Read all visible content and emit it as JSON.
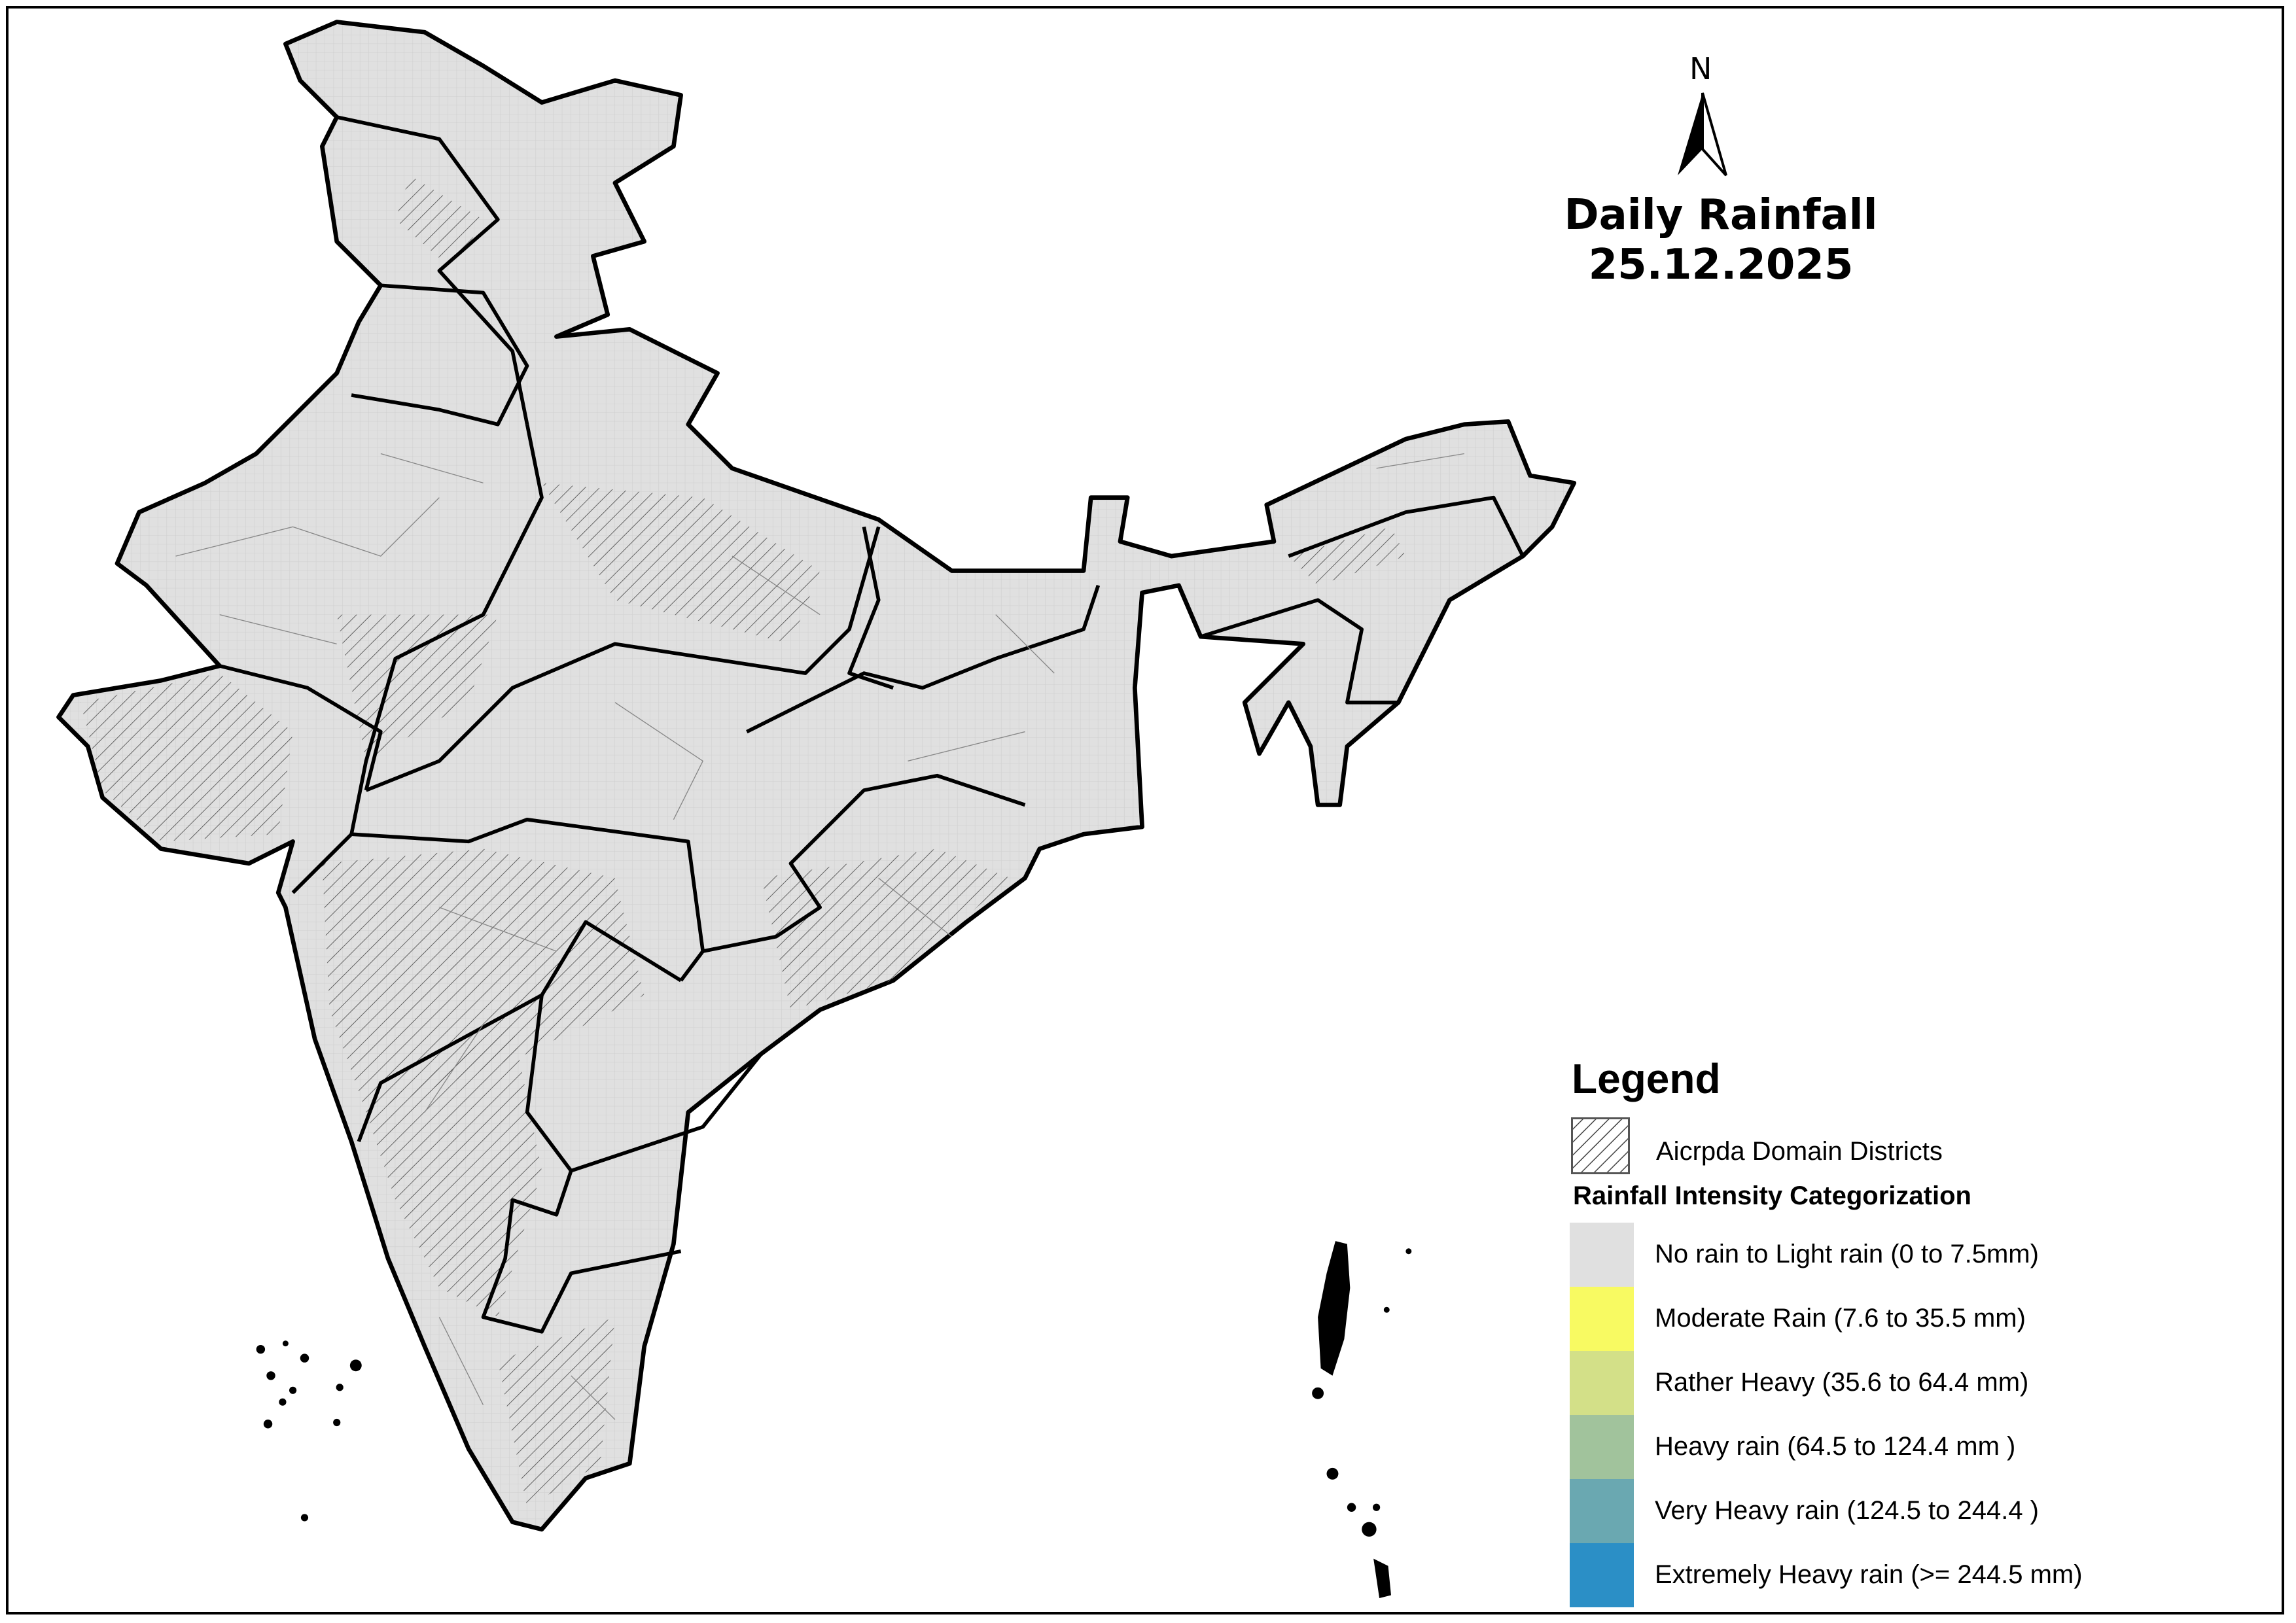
{
  "title": "Daily Rainfall",
  "date": "25.12.2025",
  "north_label": "N",
  "legend": {
    "title": "Legend",
    "domain_label": "Aicrpda Domain Districts",
    "categorization_title": "Rainfall Intensity Categorization",
    "categories": [
      {
        "label": "No rain to Light rain (0 to 7.5mm)",
        "color": "#e0e0e0"
      },
      {
        "label": "Moderate Rain (7.6 to 35.5 mm)",
        "color": "#f8fa62"
      },
      {
        "label": "Rather Heavy (35.6 to 64.4 mm)",
        "color": "#d3e088"
      },
      {
        "label": "Heavy rain (64.5 to 124.4 mm )",
        "color": "#a1c39c"
      },
      {
        "label": "Very Heavy rain (124.5 to 244.4 )",
        "color": "#6aa8b1"
      },
      {
        "label": "Extremely Heavy rain  (>= 244.5 mm)",
        "color": "#2b8fc6"
      }
    ]
  },
  "map_fill_color": "#e0e0e0"
}
